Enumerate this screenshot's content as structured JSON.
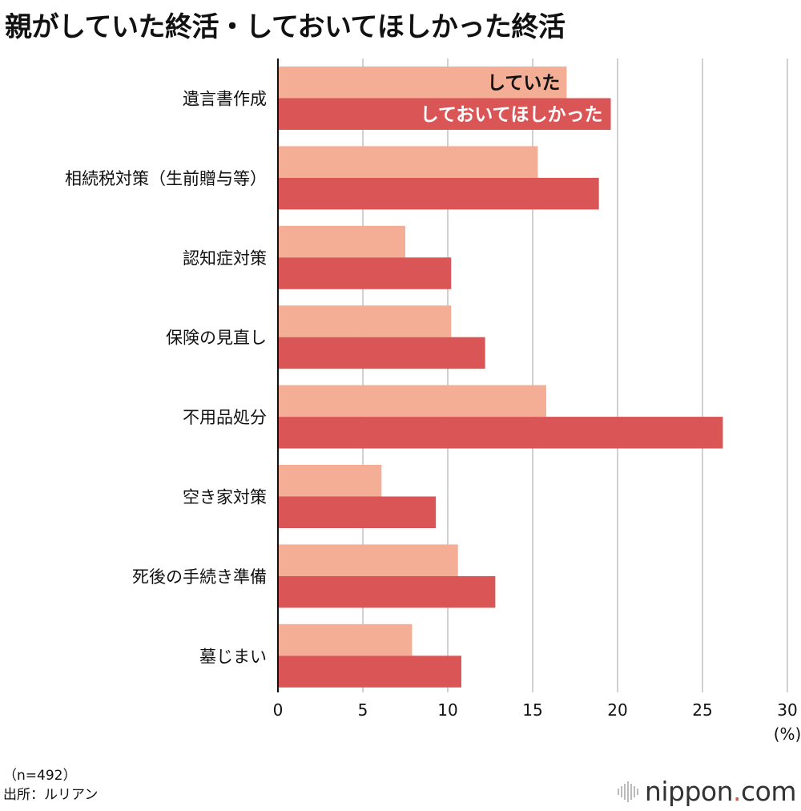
{
  "title": "親がしていた終活・しておいてほしかった終活",
  "footnote": {
    "n": "（n=492）",
    "source": "出所：ルリアン"
  },
  "brand": {
    "name": "nippon",
    "dot": ".",
    "tld": "com"
  },
  "chart_data": {
    "type": "bar",
    "orientation": "horizontal",
    "title": "親がしていた終活・しておいてほしかった終活",
    "categories": [
      "遺言書作成",
      "相続税対策（生前贈与等）",
      "認知症対策",
      "保険の見直し",
      "不用品処分",
      "空き家対策",
      "死後の手続き準備",
      "墓じまい"
    ],
    "series": [
      {
        "name": "していた",
        "color": "#f4ae96",
        "values": [
          17.0,
          15.3,
          7.5,
          10.2,
          15.8,
          6.1,
          10.6,
          7.9
        ]
      },
      {
        "name": "しておいてほしかった",
        "color": "#d95556",
        "values": [
          19.6,
          18.9,
          10.2,
          12.2,
          26.2,
          9.3,
          12.8,
          10.8
        ]
      }
    ],
    "xlim": [
      0,
      30
    ],
    "xticks": [
      "0",
      "5",
      "10",
      "15",
      "20",
      "25",
      "30"
    ],
    "unit": "(%)",
    "grid": true,
    "legend": "inside-first-category"
  }
}
